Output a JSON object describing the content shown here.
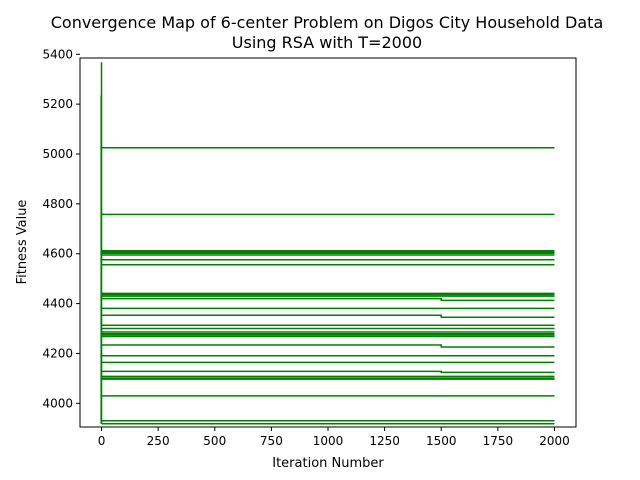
{
  "chart_data": {
    "type": "line",
    "title_line1": "Convergence Map of 6-center Problem on Digos City Household Data",
    "title_line2": "Using RSA with T=2000",
    "xlabel": "Iteration Number",
    "ylabel": "Fitness Value",
    "xlim": [
      -95,
      2095
    ],
    "ylim": [
      3905,
      5385
    ],
    "xticks": [
      0,
      250,
      500,
      750,
      1000,
      1250,
      1500,
      1750,
      2000
    ],
    "yticks": [
      4000,
      4200,
      4400,
      4600,
      4800,
      5000,
      5200,
      5400
    ],
    "line_color": "#008000",
    "grid": false,
    "legend": "none",
    "spike_start": 5368,
    "spike_secondary": 5235,
    "series": [
      {
        "values_at": [
          [
            0,
            5025
          ],
          [
            2000,
            5025
          ]
        ]
      },
      {
        "values_at": [
          [
            0,
            4758
          ],
          [
            2000,
            4758
          ]
        ]
      },
      {
        "values_at": [
          [
            0,
            4612
          ],
          [
            2000,
            4612
          ]
        ]
      },
      {
        "values_at": [
          [
            0,
            4607
          ],
          [
            2000,
            4607
          ]
        ]
      },
      {
        "values_at": [
          [
            0,
            4602
          ],
          [
            2000,
            4602
          ]
        ]
      },
      {
        "values_at": [
          [
            0,
            4595
          ],
          [
            2000,
            4595
          ]
        ]
      },
      {
        "values_at": [
          [
            0,
            4576
          ],
          [
            2000,
            4576
          ]
        ]
      },
      {
        "values_at": [
          [
            0,
            4556
          ],
          [
            2000,
            4556
          ]
        ]
      },
      {
        "values_at": [
          [
            0,
            4441
          ],
          [
            2000,
            4441
          ]
        ]
      },
      {
        "values_at": [
          [
            0,
            4436
          ],
          [
            2000,
            4436
          ]
        ]
      },
      {
        "values_at": [
          [
            0,
            4430
          ],
          [
            2000,
            4430
          ]
        ]
      },
      {
        "values_at": [
          [
            0,
            4420
          ],
          [
            1500,
            4420
          ],
          [
            1500,
            4413
          ],
          [
            2000,
            4413
          ]
        ]
      },
      {
        "values_at": [
          [
            0,
            4381
          ],
          [
            2000,
            4381
          ]
        ]
      },
      {
        "values_at": [
          [
            0,
            4353
          ],
          [
            1500,
            4353
          ],
          [
            1500,
            4345
          ],
          [
            2000,
            4345
          ]
        ]
      },
      {
        "values_at": [
          [
            0,
            4313
          ],
          [
            2000,
            4313
          ]
        ]
      },
      {
        "values_at": [
          [
            0,
            4300
          ],
          [
            2000,
            4300
          ]
        ]
      },
      {
        "values_at": [
          [
            0,
            4286
          ],
          [
            2000,
            4286
          ]
        ]
      },
      {
        "values_at": [
          [
            0,
            4279
          ],
          [
            2000,
            4279
          ]
        ]
      },
      {
        "values_at": [
          [
            0,
            4274
          ],
          [
            2000,
            4274
          ]
        ]
      },
      {
        "values_at": [
          [
            0,
            4268
          ],
          [
            2000,
            4268
          ]
        ]
      },
      {
        "values_at": [
          [
            0,
            4234
          ],
          [
            1500,
            4234
          ],
          [
            1500,
            4226
          ],
          [
            2000,
            4226
          ]
        ]
      },
      {
        "values_at": [
          [
            0,
            4191
          ],
          [
            2000,
            4191
          ]
        ]
      },
      {
        "values_at": [
          [
            0,
            4164
          ],
          [
            2000,
            4164
          ]
        ]
      },
      {
        "values_at": [
          [
            0,
            4128
          ],
          [
            1500,
            4128
          ],
          [
            1500,
            4124
          ],
          [
            2000,
            4124
          ]
        ]
      },
      {
        "values_at": [
          [
            0,
            4108
          ],
          [
            2000,
            4108
          ]
        ]
      },
      {
        "values_at": [
          [
            0,
            4101
          ],
          [
            2000,
            4101
          ]
        ]
      },
      {
        "values_at": [
          [
            0,
            4097
          ],
          [
            2000,
            4097
          ]
        ]
      },
      {
        "values_at": [
          [
            0,
            4030
          ],
          [
            2000,
            4030
          ]
        ]
      },
      {
        "values_at": [
          [
            0,
            3930
          ],
          [
            2000,
            3930
          ]
        ]
      },
      {
        "values_at": [
          [
            0,
            3918
          ],
          [
            2000,
            3918
          ]
        ]
      }
    ]
  }
}
